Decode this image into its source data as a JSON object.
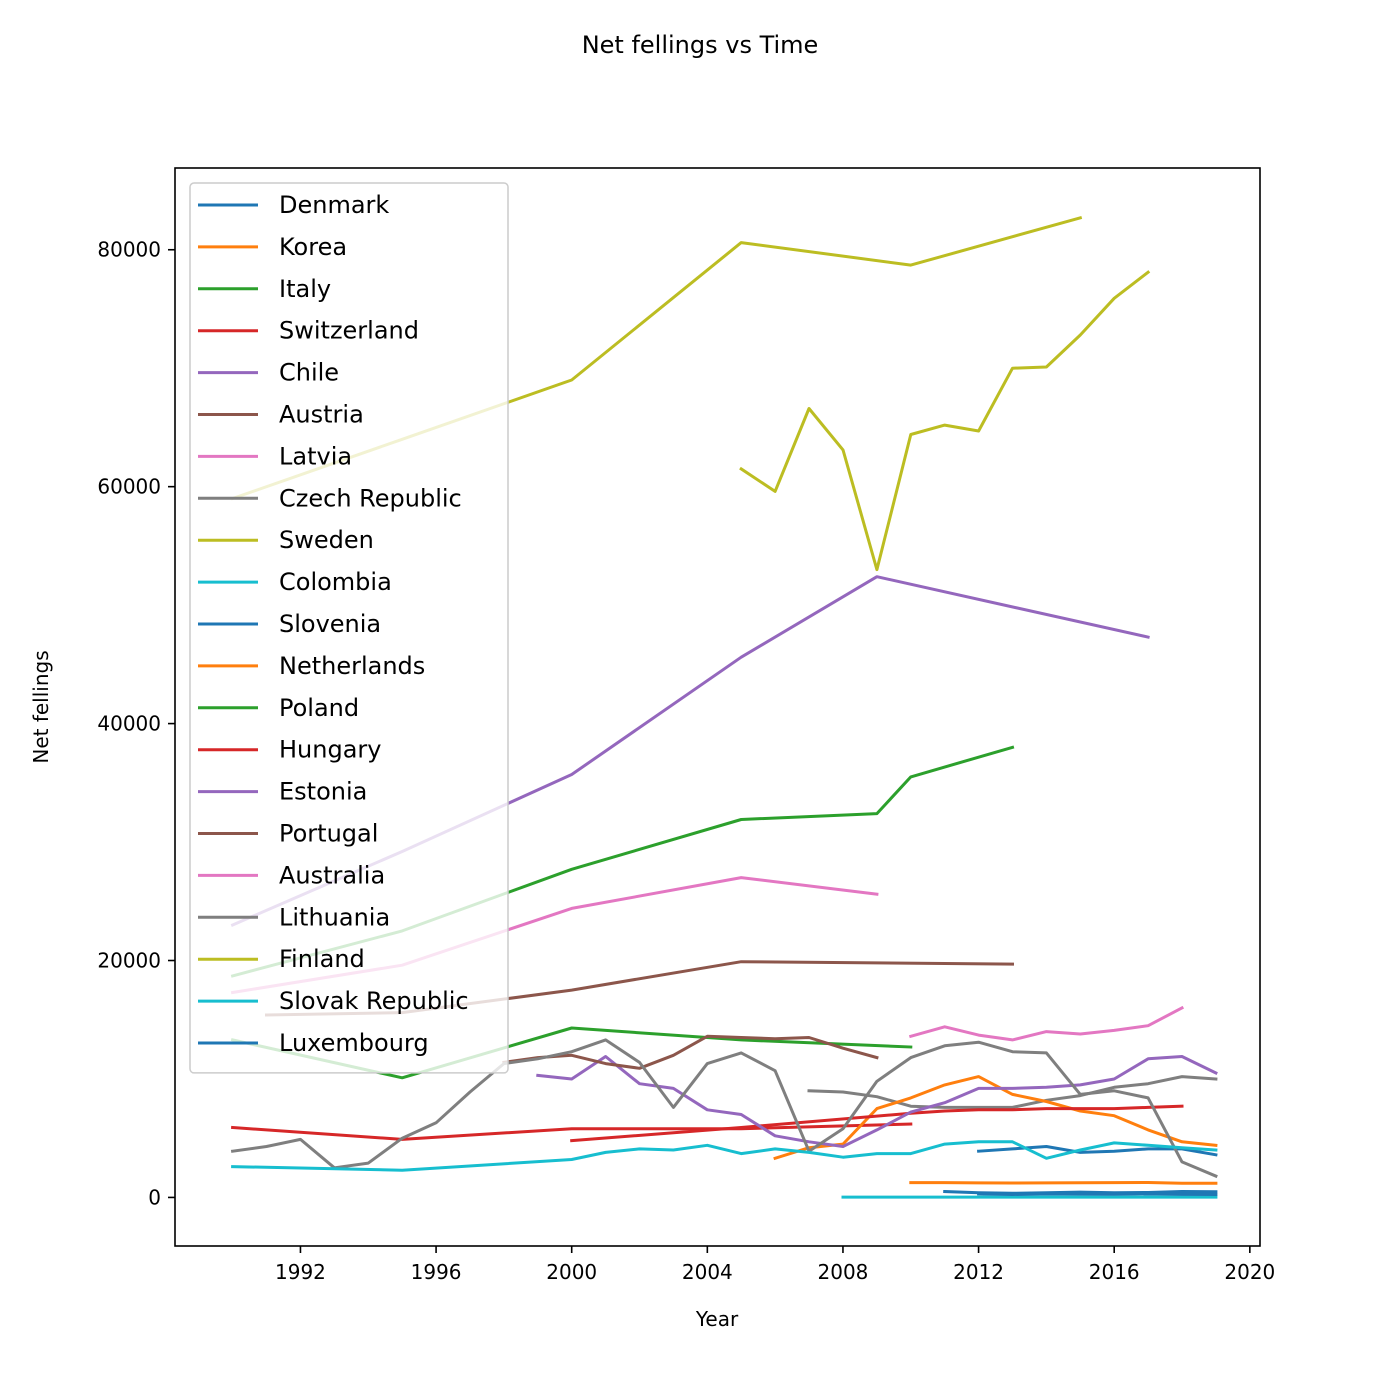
{
  "chart_data": {
    "type": "line",
    "title": "Net fellings vs Time",
    "xlabel": "Year",
    "ylabel": "Net fellings",
    "xlim": [
      1988.3,
      2020.3
    ],
    "ylim": [
      -4100,
      86900
    ],
    "xticks": [
      1992,
      1996,
      2000,
      2004,
      2008,
      2012,
      2016,
      2020
    ],
    "yticks": [
      0,
      20000,
      40000,
      60000,
      80000
    ],
    "grid": false,
    "legend_position": "top-left",
    "series": [
      {
        "name": "Denmark",
        "color": "#1f77b4",
        "x": [
          2011,
          2012,
          2013,
          2014,
          2015,
          2016,
          2017,
          2018,
          2019
        ],
        "y": [
          500,
          400,
          350,
          400,
          450,
          400,
          420,
          500,
          480
        ]
      },
      {
        "name": "Korea",
        "color": "#ff7f0e",
        "x": [
          2010,
          2011,
          2012,
          2013,
          2014,
          2015,
          2016,
          2017,
          2018,
          2019
        ],
        "y": [
          1250,
          1250,
          1230,
          1220,
          1230,
          1240,
          1250,
          1260,
          1200,
          1200
        ]
      },
      {
        "name": "Italy",
        "color": "#2ca02c",
        "x": [
          1990,
          1995,
          2000,
          2005,
          2010
        ],
        "y": [
          13300,
          10100,
          14300,
          13300,
          12700
        ]
      },
      {
        "name": "Switzerland",
        "color": "#d62728",
        "x": [
          1990,
          1995,
          2000,
          2005,
          2010
        ],
        "y": [
          5900,
          4900,
          5800,
          5800,
          6200
        ]
      },
      {
        "name": "Chile",
        "color": "#9467bd",
        "x": [
          1990,
          1995,
          2000,
          2005,
          2009,
          2017
        ],
        "y": [
          23000,
          29200,
          35700,
          45600,
          52400,
          47300
        ]
      },
      {
        "name": "Austria",
        "color": "#8c564b",
        "x": [
          1991,
          1995,
          2000,
          2005,
          2013
        ],
        "y": [
          15400,
          15600,
          17500,
          19900,
          19700
        ]
      },
      {
        "name": "Latvia",
        "color": "#e377c2",
        "x": [
          2010,
          2011,
          2012,
          2013,
          2014,
          2015,
          2016,
          2017,
          2018
        ],
        "y": [
          13600,
          14400,
          13700,
          13300,
          14000,
          13800,
          14100,
          14500,
          16000
        ]
      },
      {
        "name": "Czech Republic",
        "color": "#7f7f7f",
        "x": [
          2007,
          2008,
          2009,
          2010,
          2011,
          2012,
          2013,
          2014,
          2015,
          2016,
          2017,
          2018,
          2019
        ],
        "y": [
          9000,
          8900,
          8500,
          7700,
          7600,
          7600,
          7600,
          8200,
          8600,
          9300,
          9600,
          10200,
          10000
        ]
      },
      {
        "name": "Sweden",
        "color": "#bcbd22",
        "x": [
          1990,
          1995,
          2000,
          2005,
          2010,
          2015
        ],
        "y": [
          59000,
          64000,
          69000,
          80600,
          78700,
          82700
        ]
      },
      {
        "name": "Colombia",
        "color": "#17becf",
        "x": [
          2008,
          2009,
          2010,
          2011,
          2012,
          2013,
          2014,
          2015,
          2016,
          2017,
          2018,
          2019
        ],
        "y": [
          30,
          30,
          30,
          30,
          30,
          30,
          30,
          30,
          30,
          30,
          30,
          30
        ]
      },
      {
        "name": "Slovenia",
        "color": "#1f77b4",
        "x": [
          2012,
          2013,
          2014,
          2015,
          2016,
          2017,
          2018,
          2019
        ],
        "y": [
          3900,
          4100,
          4300,
          3800,
          3900,
          4100,
          4100,
          3600
        ]
      },
      {
        "name": "Netherlands",
        "color": "#ff7f0e",
        "x": [
          2006,
          2007,
          2008,
          2009,
          2010,
          2011,
          2012,
          2013,
          2014,
          2015,
          2016,
          2017,
          2018,
          2019
        ],
        "y": [
          3300,
          4200,
          4500,
          7500,
          8400,
          9500,
          10200,
          8700,
          8100,
          7300,
          6900,
          5700,
          4700,
          4400
        ]
      },
      {
        "name": "Poland",
        "color": "#2ca02c",
        "x": [
          1990,
          1995,
          2000,
          2005,
          2009,
          2010,
          2013
        ],
        "y": [
          18700,
          22500,
          27700,
          31900,
          32400,
          35500,
          38000
        ]
      },
      {
        "name": "Hungary",
        "color": "#d62728",
        "x": [
          2000,
          2005,
          2010,
          2011,
          2012,
          2013,
          2014,
          2015,
          2016,
          2017,
          2018
        ],
        "y": [
          4800,
          5900,
          7100,
          7300,
          7400,
          7400,
          7500,
          7500,
          7500,
          7600,
          7700
        ]
      },
      {
        "name": "Estonia",
        "color": "#9467bd",
        "x": [
          1999,
          2000,
          2001,
          2002,
          2003,
          2004,
          2005,
          2006,
          2007,
          2008,
          2009,
          2010,
          2011,
          2012,
          2013,
          2014,
          2015,
          2016,
          2017,
          2018,
          2019
        ],
        "y": [
          10300,
          10000,
          11900,
          9600,
          9200,
          7400,
          7000,
          5200,
          4700,
          4300,
          5700,
          7200,
          8000,
          9200,
          9200,
          9300,
          9500,
          10000,
          11700,
          11900,
          10500
        ]
      },
      {
        "name": "Portugal",
        "color": "#8c564b",
        "x": [
          1998,
          1999,
          2000,
          2001,
          2002,
          2003,
          2004,
          2005,
          2006,
          2007,
          2008,
          2009
        ],
        "y": [
          11400,
          11800,
          12000,
          11300,
          10900,
          12000,
          13600,
          13500,
          13400,
          13500,
          12600,
          11800
        ]
      },
      {
        "name": "Australia",
        "color": "#e377c2",
        "x": [
          1990,
          1995,
          2000,
          2005,
          2009
        ],
        "y": [
          17300,
          19600,
          24400,
          27000,
          25600
        ]
      },
      {
        "name": "Lithuania",
        "color": "#7f7f7f",
        "x": [
          1990,
          1991,
          1992,
          1993,
          1994,
          1995,
          1996,
          1997,
          1998,
          1999,
          2000,
          2001,
          2002,
          2003,
          2004,
          2005,
          2006,
          2007,
          2008,
          2009,
          2010,
          2011,
          2012,
          2013,
          2014,
          2015,
          2016,
          2017,
          2018,
          2019
        ],
        "y": [
          3900,
          4300,
          4900,
          2500,
          2900,
          5000,
          6300,
          8900,
          11300,
          11700,
          12300,
          13300,
          11400,
          7600,
          11300,
          12200,
          10700,
          3900,
          5800,
          9800,
          11800,
          12800,
          13100,
          12300,
          12200,
          8700,
          9000,
          8400,
          3000,
          1800
        ]
      },
      {
        "name": "Finland",
        "color": "#bcbd22",
        "x": [
          2005,
          2006,
          2007,
          2008,
          2009,
          2010,
          2011,
          2012,
          2013,
          2014,
          2015,
          2016,
          2017
        ],
        "y": [
          61500,
          59600,
          66600,
          63100,
          53000,
          64400,
          65200,
          64700,
          70000,
          70100,
          72800,
          75900,
          78100
        ]
      },
      {
        "name": "Slovak Republic",
        "color": "#17becf",
        "x": [
          1990,
          1995,
          2000,
          2001,
          2002,
          2003,
          2004,
          2005,
          2006,
          2007,
          2008,
          2009,
          2010,
          2011,
          2012,
          2013,
          2014,
          2015,
          2016,
          2017,
          2018,
          2019
        ],
        "y": [
          2600,
          2300,
          3200,
          3800,
          4100,
          4000,
          4400,
          3700,
          4100,
          3800,
          3400,
          3700,
          3700,
          4500,
          4700,
          4700,
          3300,
          4000,
          4600,
          4400,
          4200,
          4000
        ]
      },
      {
        "name": "Luxembourg",
        "color": "#1f77b4",
        "x": [
          2012,
          2013,
          2014,
          2015,
          2016,
          2017,
          2018,
          2019
        ],
        "y": [
          300,
          250,
          300,
          280,
          270,
          300,
          260,
          250
        ]
      }
    ]
  }
}
